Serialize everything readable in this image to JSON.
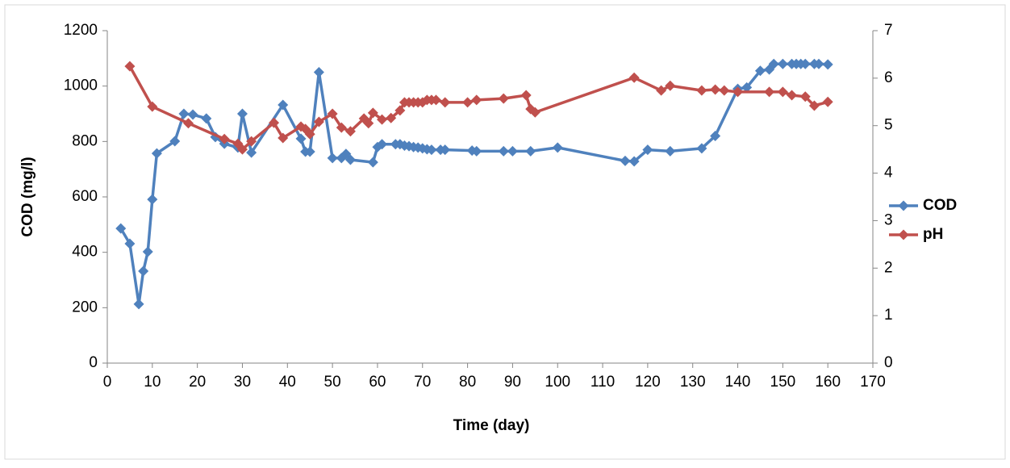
{
  "chart_data": {
    "type": "line",
    "xlabel": "Time (day)",
    "ylabel": "COD (mg/l)",
    "xlim": [
      0,
      170
    ],
    "xticks": [
      0,
      10,
      20,
      30,
      40,
      50,
      60,
      70,
      80,
      90,
      100,
      110,
      120,
      130,
      140,
      150,
      160,
      170
    ],
    "ylim": [
      0,
      1200
    ],
    "yticks": [
      0,
      200,
      400,
      600,
      800,
      1000,
      1200
    ],
    "y2lim": [
      0,
      7
    ],
    "y2ticks": [
      0,
      1,
      2,
      3,
      4,
      5,
      6,
      7
    ],
    "grid": false,
    "legend": "right",
    "series": [
      {
        "name": "COD",
        "color": "#4f81bd",
        "x": [
          3,
          5,
          7,
          8,
          9,
          10,
          11,
          15,
          17,
          19,
          22,
          24,
          26,
          29,
          30,
          32,
          39,
          43,
          44,
          45,
          47,
          50,
          52,
          53,
          54,
          59,
          60,
          61,
          64,
          65,
          66,
          67,
          68,
          69,
          70,
          71,
          72,
          74,
          75,
          81,
          82,
          88,
          90,
          94,
          100,
          115,
          117,
          120,
          125,
          132,
          135,
          140,
          142,
          145,
          147,
          148,
          150,
          152,
          153,
          154,
          155,
          157,
          158,
          160
        ],
        "values": [
          486,
          431,
          213,
          332,
          402,
          591,
          757,
          801,
          900,
          897,
          883,
          816,
          792,
          778,
          900,
          760,
          932,
          810,
          763,
          763,
          1050,
          740,
          740,
          755,
          734,
          725,
          780,
          790,
          790,
          790,
          785,
          783,
          780,
          778,
          775,
          772,
          770,
          770,
          770,
          767,
          765,
          765,
          765,
          765,
          778,
          730,
          728,
          770,
          765,
          775,
          820,
          990,
          995,
          1055,
          1060,
          1080,
          1080,
          1080,
          1080,
          1080,
          1080,
          1080,
          1080,
          1078
        ]
      },
      {
        "name": "pH",
        "color": "#c0504d",
        "axis": "y2",
        "x": [
          5,
          10,
          18,
          26,
          29,
          30,
          32,
          37,
          39,
          43,
          44,
          45,
          47,
          50,
          52,
          54,
          57,
          58,
          59,
          61,
          63,
          65,
          66,
          67,
          68,
          69,
          70,
          71,
          72,
          73,
          75,
          80,
          82,
          88,
          93,
          94,
          95,
          117,
          123,
          125,
          132,
          135,
          137,
          140,
          147,
          150,
          152,
          155,
          157,
          160
        ],
        "values": [
          6.25,
          5.4,
          5.05,
          4.72,
          4.62,
          4.5,
          4.67,
          5.06,
          4.74,
          4.98,
          4.93,
          4.82,
          5.08,
          5.25,
          4.96,
          4.88,
          5.15,
          5.05,
          5.27,
          5.13,
          5.16,
          5.32,
          5.49,
          5.49,
          5.49,
          5.49,
          5.49,
          5.54,
          5.54,
          5.54,
          5.49,
          5.49,
          5.54,
          5.57,
          5.64,
          5.35,
          5.28,
          6.01,
          5.74,
          5.84,
          5.74,
          5.76,
          5.74,
          5.71,
          5.71,
          5.71,
          5.64,
          5.61,
          5.42,
          5.5
        ]
      }
    ]
  }
}
